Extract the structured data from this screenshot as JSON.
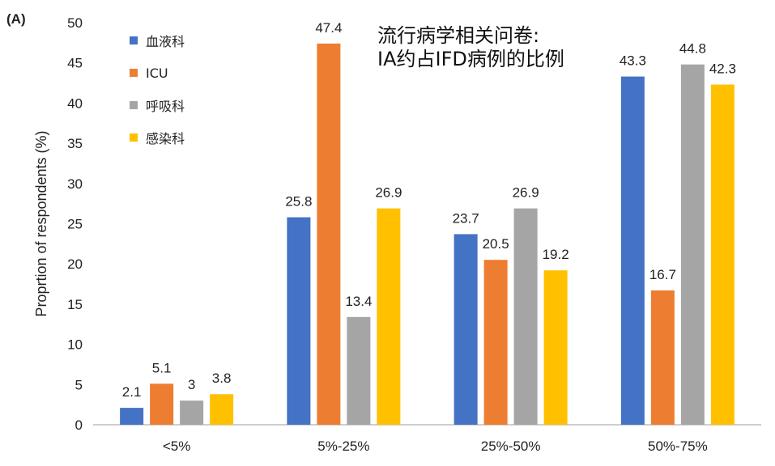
{
  "panel_label": "(A)",
  "annotation": [
    "流行病学相关问卷:",
    "IA约占IFD病例的比例"
  ],
  "chart_data": {
    "type": "bar",
    "title": "",
    "xlabel": "",
    "ylabel": "Proprtion of respondents (%)",
    "ylim": [
      0,
      50
    ],
    "yticks": [
      0,
      5,
      10,
      15,
      20,
      25,
      30,
      35,
      40,
      45,
      50
    ],
    "grid": false,
    "legend_position": "top-left",
    "categories": [
      "<5%",
      "5%-25%",
      "25%-50%",
      "50%-75%"
    ],
    "series": [
      {
        "name": "血液科",
        "color": "#4472C4",
        "values": [
          2.1,
          25.8,
          23.7,
          43.3
        ],
        "labels": [
          "2.1",
          "25.8",
          "23.7",
          "43.3"
        ]
      },
      {
        "name": "ICU",
        "color": "#ED7D31",
        "values": [
          5.1,
          47.4,
          20.5,
          16.7
        ],
        "labels": [
          "5.1",
          "47.4",
          "20.5",
          "16.7"
        ]
      },
      {
        "name": "呼吸科",
        "color": "#A5A5A5",
        "values": [
          3,
          13.4,
          26.9,
          44.8
        ],
        "labels": [
          "3",
          "13.4",
          "26.9",
          "44.8"
        ]
      },
      {
        "name": "感染科",
        "color": "#FFC000",
        "values": [
          3.8,
          26.9,
          19.2,
          42.3
        ],
        "labels": [
          "3.8",
          "26.9",
          "19.2",
          "42.3"
        ]
      }
    ]
  }
}
